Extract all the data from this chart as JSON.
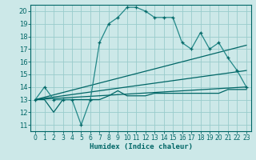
{
  "bg_color": "#cce8e8",
  "grid_color": "#99cccc",
  "line_color_dark": "#006666",
  "line_color_med": "#228888",
  "xlabel": "Humidex (Indice chaleur)",
  "xlim": [
    -0.5,
    23.5
  ],
  "ylim": [
    10.5,
    20.5
  ],
  "yticks": [
    11,
    12,
    13,
    14,
    15,
    16,
    17,
    18,
    19,
    20
  ],
  "xticks": [
    0,
    1,
    2,
    3,
    4,
    5,
    6,
    7,
    8,
    9,
    10,
    11,
    12,
    13,
    14,
    15,
    16,
    17,
    18,
    19,
    20,
    21,
    22,
    23
  ],
  "series_main_x": [
    0,
    1,
    2,
    3,
    4,
    5,
    6,
    7,
    8,
    9,
    10,
    11,
    12,
    13,
    14,
    15,
    16,
    17,
    18,
    19,
    20,
    21,
    22,
    23
  ],
  "series_main_y": [
    13,
    14,
    13,
    13,
    13,
    11,
    13,
    17.5,
    19,
    19.5,
    20.3,
    20.3,
    20,
    19.5,
    19.5,
    19.5,
    17.5,
    17,
    18.3,
    17,
    17.5,
    16.3,
    15.3,
    14
  ],
  "series_flat_x": [
    0,
    1,
    2,
    3,
    4,
    5,
    6,
    7,
    8,
    9,
    10,
    11,
    12,
    13,
    14,
    15,
    16,
    17,
    18,
    19,
    20,
    21,
    22,
    23
  ],
  "series_flat_y": [
    13,
    13,
    12,
    13,
    13,
    13,
    13,
    13,
    13.3,
    13.7,
    13.3,
    13.3,
    13.3,
    13.5,
    13.5,
    13.5,
    13.5,
    13.5,
    13.5,
    13.5,
    13.5,
    13.8,
    13.8,
    13.8
  ],
  "line1_x": [
    0,
    23
  ],
  "line1_y": [
    13,
    14
  ],
  "line2_x": [
    0,
    23
  ],
  "line2_y": [
    13,
    17.3
  ],
  "line3_x": [
    0,
    23
  ],
  "line3_y": [
    13,
    15.3
  ]
}
